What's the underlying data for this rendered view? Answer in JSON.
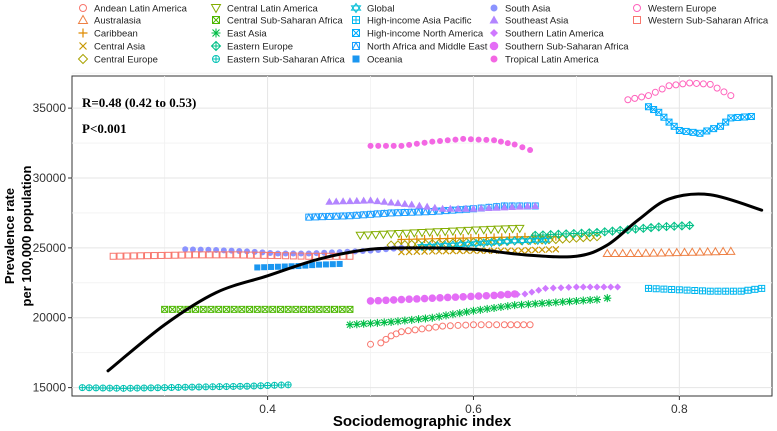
{
  "chart_data": {
    "type": "scatter",
    "xlabel": "Sociodemographic index",
    "ylabel_line1": "Prevalence rate",
    "ylabel_line2": "per 100,000 population",
    "xlim": [
      0.21,
      0.89
    ],
    "ylim": [
      14400,
      37300
    ],
    "x_ticks": [
      0.4,
      0.6,
      0.8
    ],
    "x_tick_labels": [
      "0.4",
      "0.6",
      "0.8"
    ],
    "y_ticks": [
      15000,
      20000,
      25000,
      30000,
      35000
    ],
    "y_tick_labels": [
      "15000",
      "20000",
      "25000",
      "30000",
      "35000"
    ],
    "annotations": [
      "R=0.48 (0.42 to 0.53)",
      "P<0.001"
    ],
    "series": [
      {
        "name": "Andean Latin America",
        "color": "#F8766D",
        "marker": "circle-open",
        "points": [
          [
            0.5,
            18100
          ],
          [
            0.51,
            18200
          ],
          [
            0.52,
            18700
          ],
          [
            0.53,
            19000
          ],
          [
            0.55,
            19200
          ],
          [
            0.57,
            19400
          ],
          [
            0.6,
            19500
          ],
          [
            0.63,
            19500
          ],
          [
            0.655,
            19500
          ]
        ]
      },
      {
        "name": "Australasia",
        "color": "#EE8044",
        "marker": "triangle-open",
        "points": [
          [
            0.73,
            24600
          ],
          [
            0.76,
            24600
          ],
          [
            0.79,
            24650
          ],
          [
            0.82,
            24700
          ],
          [
            0.85,
            24750
          ]
        ]
      },
      {
        "name": "Caribbean",
        "color": "#DF8A00",
        "marker": "plus",
        "points": [
          [
            0.53,
            25600
          ],
          [
            0.56,
            25650
          ],
          [
            0.59,
            25700
          ],
          [
            0.62,
            25750
          ],
          [
            0.65,
            25800
          ],
          [
            0.68,
            25800
          ]
        ]
      },
      {
        "name": "Central Asia",
        "color": "#C79600",
        "marker": "x",
        "points": [
          [
            0.53,
            24700
          ],
          [
            0.56,
            24750
          ],
          [
            0.6,
            24800
          ],
          [
            0.64,
            24800
          ],
          [
            0.68,
            24900
          ]
        ]
      },
      {
        "name": "Central Europe",
        "color": "#A9A200",
        "marker": "diamond-open",
        "points": [
          [
            0.52,
            25200
          ],
          [
            0.56,
            25300
          ],
          [
            0.6,
            25400
          ],
          [
            0.64,
            25500
          ],
          [
            0.68,
            25600
          ],
          [
            0.72,
            25800
          ]
        ]
      },
      {
        "name": "Central Latin America",
        "color": "#83AD00",
        "marker": "triangle-down-open",
        "points": [
          [
            0.49,
            25900
          ],
          [
            0.52,
            26000
          ],
          [
            0.55,
            26100
          ],
          [
            0.58,
            26200
          ],
          [
            0.61,
            26300
          ],
          [
            0.645,
            26400
          ]
        ]
      },
      {
        "name": "Central Sub-Saharan Africa",
        "color": "#4CB700",
        "marker": "square-x",
        "points": [
          [
            0.3,
            20600
          ],
          [
            0.33,
            20600
          ],
          [
            0.36,
            20600
          ],
          [
            0.39,
            20600
          ],
          [
            0.42,
            20600
          ],
          [
            0.45,
            20600
          ],
          [
            0.48,
            20600
          ]
        ]
      },
      {
        "name": "East Asia",
        "color": "#00BD46",
        "marker": "asterisk",
        "points": [
          [
            0.48,
            19500
          ],
          [
            0.52,
            19700
          ],
          [
            0.56,
            20000
          ],
          [
            0.6,
            20500
          ],
          [
            0.64,
            20900
          ],
          [
            0.68,
            21100
          ],
          [
            0.72,
            21300
          ],
          [
            0.73,
            21400
          ]
        ]
      },
      {
        "name": "Eastern Europe",
        "color": "#00C087",
        "marker": "diamond-plus",
        "points": [
          [
            0.66,
            25900
          ],
          [
            0.69,
            26000
          ],
          [
            0.72,
            26100
          ],
          [
            0.75,
            26300
          ],
          [
            0.78,
            26500
          ],
          [
            0.81,
            26600
          ]
        ]
      },
      {
        "name": "Eastern Sub-Saharan Africa",
        "color": "#00C1B3",
        "marker": "circle-plus",
        "points": [
          [
            0.22,
            15000
          ],
          [
            0.26,
            14950
          ],
          [
            0.3,
            15000
          ],
          [
            0.34,
            15050
          ],
          [
            0.38,
            15100
          ],
          [
            0.42,
            15200
          ]
        ]
      },
      {
        "name": "Global",
        "color": "#00BDD6",
        "marker": "star6",
        "points": [
          [
            0.55,
            25100
          ],
          [
            0.58,
            25200
          ],
          [
            0.61,
            25350
          ],
          [
            0.64,
            25500
          ],
          [
            0.67,
            25550
          ]
        ]
      },
      {
        "name": "High-income Asia Pacific",
        "color": "#00B6EF",
        "marker": "square-plus",
        "points": [
          [
            0.77,
            22100
          ],
          [
            0.8,
            22000
          ],
          [
            0.83,
            21900
          ],
          [
            0.86,
            21900
          ],
          [
            0.88,
            22100
          ]
        ]
      },
      {
        "name": "High-income North America",
        "color": "#00ABFD",
        "marker": "square-x",
        "points": [
          [
            0.77,
            35100
          ],
          [
            0.78,
            34700
          ],
          [
            0.79,
            34000
          ],
          [
            0.8,
            33400
          ],
          [
            0.82,
            33200
          ],
          [
            0.84,
            33700
          ],
          [
            0.85,
            34300
          ],
          [
            0.87,
            34400
          ]
        ]
      },
      {
        "name": "North Africa and Middle East",
        "color": "#1B9EFF",
        "marker": "square-cross",
        "points": [
          [
            0.44,
            27200
          ],
          [
            0.48,
            27300
          ],
          [
            0.52,
            27500
          ],
          [
            0.56,
            27600
          ],
          [
            0.6,
            27800
          ],
          [
            0.63,
            28000
          ],
          [
            0.66,
            28000
          ]
        ]
      },
      {
        "name": "Oceania",
        "color": "#1A96F0",
        "marker": "square-filled",
        "points": [
          [
            0.39,
            23600
          ],
          [
            0.41,
            23650
          ],
          [
            0.43,
            23700
          ],
          [
            0.45,
            23800
          ],
          [
            0.47,
            23850
          ]
        ]
      },
      {
        "name": "South Asia",
        "color": "#8B93FF",
        "marker": "circle-filled",
        "points": [
          [
            0.32,
            24900
          ],
          [
            0.35,
            24850
          ],
          [
            0.38,
            24750
          ],
          [
            0.41,
            24600
          ],
          [
            0.44,
            24600
          ],
          [
            0.47,
            24700
          ],
          [
            0.5,
            24800
          ],
          [
            0.53,
            25000
          ]
        ]
      },
      {
        "name": "Southeast Asia",
        "color": "#B385FF",
        "marker": "triangle-filled",
        "points": [
          [
            0.46,
            28300
          ],
          [
            0.5,
            28400
          ],
          [
            0.54,
            28100
          ],
          [
            0.57,
            27800
          ],
          [
            0.6,
            27800
          ],
          [
            0.63,
            27900
          ],
          [
            0.66,
            28000
          ]
        ]
      },
      {
        "name": "Southern Latin America",
        "color": "#CF78FF",
        "marker": "diamond-filled",
        "points": [
          [
            0.62,
            21600
          ],
          [
            0.65,
            21700
          ],
          [
            0.67,
            22100
          ],
          [
            0.7,
            22200
          ],
          [
            0.74,
            22200
          ]
        ]
      },
      {
        "name": "Southern Sub-Saharan Africa",
        "color": "#E46DF6",
        "marker": "circle-filled-large",
        "points": [
          [
            0.5,
            21200
          ],
          [
            0.53,
            21300
          ],
          [
            0.56,
            21400
          ],
          [
            0.59,
            21500
          ],
          [
            0.62,
            21600
          ],
          [
            0.64,
            21700
          ]
        ]
      },
      {
        "name": "Tropical Latin America",
        "color": "#F367E3",
        "marker": "circle-filled",
        "points": [
          [
            0.5,
            32300
          ],
          [
            0.53,
            32300
          ],
          [
            0.56,
            32600
          ],
          [
            0.59,
            32800
          ],
          [
            0.62,
            32700
          ],
          [
            0.64,
            32400
          ],
          [
            0.655,
            32000
          ]
        ]
      },
      {
        "name": "Western Europe",
        "color": "#FF62BC",
        "marker": "circle-open",
        "points": [
          [
            0.75,
            35600
          ],
          [
            0.77,
            35900
          ],
          [
            0.79,
            36600
          ],
          [
            0.81,
            36800
          ],
          [
            0.83,
            36700
          ],
          [
            0.85,
            35900
          ]
        ]
      },
      {
        "name": "Western Sub-Saharan Africa",
        "color": "#F8766D",
        "marker": "square-open",
        "points": [
          [
            0.25,
            24400
          ],
          [
            0.29,
            24450
          ],
          [
            0.33,
            24500
          ],
          [
            0.37,
            24500
          ],
          [
            0.41,
            24450
          ],
          [
            0.44,
            24400
          ],
          [
            0.48,
            24400
          ]
        ]
      }
    ],
    "smooth_line": {
      "color": "#000000",
      "points": [
        [
          0.245,
          16200
        ],
        [
          0.3,
          19500
        ],
        [
          0.35,
          21800
        ],
        [
          0.4,
          23000
        ],
        [
          0.45,
          24200
        ],
        [
          0.5,
          24900
        ],
        [
          0.55,
          25000
        ],
        [
          0.6,
          24900
        ],
        [
          0.65,
          24500
        ],
        [
          0.7,
          24400
        ],
        [
          0.73,
          25200
        ],
        [
          0.76,
          27000
        ],
        [
          0.79,
          28500
        ],
        [
          0.83,
          28800
        ],
        [
          0.88,
          27700
        ]
      ]
    }
  }
}
